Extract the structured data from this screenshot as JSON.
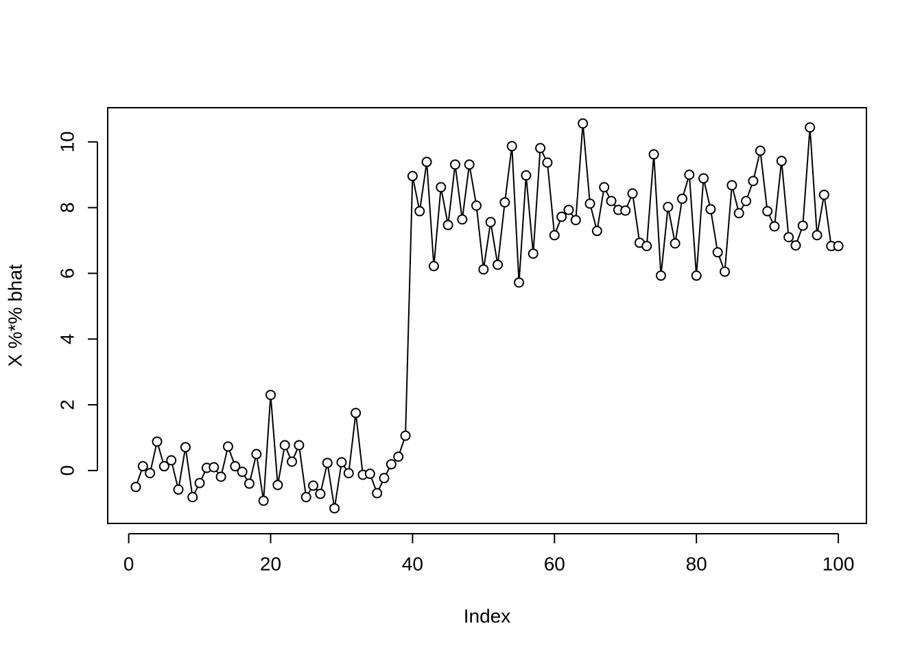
{
  "chart_data": {
    "type": "line",
    "markers": true,
    "color": "#000000",
    "x_label": "Index",
    "y_label": "X %*% bhat",
    "x": [
      1,
      2,
      3,
      4,
      5,
      6,
      7,
      8,
      9,
      10,
      11,
      12,
      13,
      14,
      15,
      16,
      17,
      18,
      19,
      20,
      21,
      22,
      23,
      24,
      25,
      26,
      27,
      28,
      29,
      30,
      31,
      32,
      33,
      34,
      35,
      36,
      37,
      38,
      39,
      40,
      41,
      42,
      43,
      44,
      45,
      46,
      47,
      48,
      49,
      50,
      51,
      52,
      53,
      54,
      55,
      56,
      57,
      58,
      59,
      60,
      61,
      62,
      63,
      64,
      65,
      66,
      67,
      68,
      69,
      70,
      71,
      72,
      73,
      74,
      75,
      76,
      77,
      78,
      79,
      80,
      81,
      82,
      83,
      84,
      85,
      86,
      87,
      88,
      89,
      90,
      91,
      92,
      93,
      94,
      95,
      96,
      97,
      98,
      99,
      100
    ],
    "values": [
      -0.5,
      0.13,
      -0.08,
      0.88,
      0.13,
      0.31,
      -0.58,
      0.71,
      -0.81,
      -0.38,
      0.08,
      0.1,
      -0.19,
      0.73,
      0.13,
      -0.04,
      -0.4,
      0.5,
      -0.92,
      2.3,
      -0.44,
      0.77,
      0.27,
      0.77,
      -0.81,
      -0.46,
      -0.71,
      0.23,
      -1.15,
      0.25,
      -0.08,
      1.75,
      -0.13,
      -0.1,
      -0.69,
      -0.23,
      0.19,
      0.42,
      1.06,
      8.96,
      7.89,
      9.39,
      6.22,
      8.62,
      7.47,
      9.31,
      7.64,
      9.31,
      8.06,
      6.12,
      7.56,
      6.26,
      8.16,
      9.87,
      5.72,
      8.98,
      6.6,
      9.81,
      9.37,
      7.16,
      7.72,
      7.93,
      7.62,
      10.56,
      8.12,
      7.29,
      8.62,
      8.2,
      7.93,
      7.91,
      8.43,
      6.93,
      6.83,
      9.62,
      5.93,
      8.02,
      6.91,
      8.27,
      9.0,
      5.93,
      8.89,
      7.95,
      6.64,
      6.05,
      8.68,
      7.83,
      8.2,
      8.81,
      9.73,
      7.89,
      7.43,
      9.42,
      7.1,
      6.85,
      7.45,
      10.44,
      7.16,
      8.39,
      6.83,
      6.83
    ],
    "xlim": [
      -2.96,
      103.96
    ],
    "ylim": [
      -1.61,
      11.04
    ],
    "xticks": [
      0,
      20,
      40,
      60,
      80,
      100
    ],
    "yticks": [
      0,
      2,
      4,
      6,
      8,
      10
    ],
    "grid": false
  }
}
